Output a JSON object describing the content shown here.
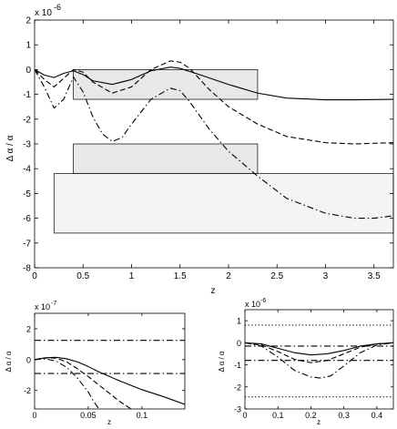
{
  "chart_data": [
    {
      "type": "line",
      "panel": "main",
      "exponent_label": "x 10",
      "exponent_power": "-6",
      "xlabel": "z",
      "ylabel": "Δ α / α",
      "xlim": [
        0,
        3.7
      ],
      "ylim": [
        -8,
        2
      ],
      "xticks": [
        0,
        0.5,
        1,
        1.5,
        2,
        2.5,
        3,
        3.5
      ],
      "xtick_labels": [
        "0",
        "0.5",
        "1",
        "1.5",
        "2",
        "2.5",
        "3",
        "3.5"
      ],
      "yticks": [
        2,
        1,
        0,
        -1,
        -2,
        -3,
        -4,
        -5,
        -6,
        -7,
        -8
      ],
      "ytick_labels": [
        "2",
        "1",
        "0",
        "-1",
        "-2",
        "-3",
        "-4",
        "-5",
        "-6",
        "-7",
        "-8"
      ],
      "grid": false,
      "regions": [
        {
          "x": [
            0.4,
            2.3
          ],
          "y": [
            -1.2,
            0.0
          ],
          "fill": "#e8e8e8"
        },
        {
          "x": [
            0.4,
            2.3
          ],
          "y": [
            -4.2,
            -3.0
          ],
          "fill": "#e8e8e8"
        },
        {
          "x": [
            0.2,
            3.7
          ],
          "y": [
            -6.6,
            -4.2
          ],
          "fill": "#f4f4f4"
        }
      ],
      "series": [
        {
          "style": "solid",
          "x": [
            0,
            0.1,
            0.2,
            0.3,
            0.4,
            0.5,
            0.6,
            0.8,
            1.0,
            1.2,
            1.4,
            1.5,
            1.7,
            2.0,
            2.3,
            2.6,
            3.0,
            3.3,
            3.7
          ],
          "y": [
            0,
            -0.22,
            -0.32,
            -0.15,
            -0.05,
            -0.2,
            -0.45,
            -0.6,
            -0.4,
            -0.05,
            0.1,
            0.05,
            -0.2,
            -0.6,
            -0.95,
            -1.15,
            -1.22,
            -1.22,
            -1.2
          ]
        },
        {
          "style": "dashed",
          "x": [
            0,
            0.1,
            0.2,
            0.3,
            0.4,
            0.5,
            0.6,
            0.8,
            1.0,
            1.2,
            1.4,
            1.5,
            1.6,
            1.8,
            2.0,
            2.3,
            2.6,
            3.0,
            3.3,
            3.7
          ],
          "y": [
            0,
            -0.4,
            -0.7,
            -0.35,
            0,
            -0.1,
            -0.5,
            -0.95,
            -0.7,
            0.0,
            0.35,
            0.3,
            0.05,
            -0.8,
            -1.5,
            -2.2,
            -2.7,
            -2.95,
            -3.0,
            -2.95
          ]
        },
        {
          "style": "dashdot",
          "x": [
            0,
            0.1,
            0.2,
            0.3,
            0.4,
            0.5,
            0.6,
            0.7,
            0.8,
            0.9,
            1.0,
            1.2,
            1.4,
            1.5,
            1.6,
            1.8,
            2.0,
            2.3,
            2.6,
            3.0,
            3.3,
            3.5,
            3.7
          ],
          "y": [
            0,
            -0.7,
            -1.55,
            -1.2,
            -0.3,
            -0.9,
            -1.9,
            -2.6,
            -2.9,
            -2.75,
            -2.2,
            -1.2,
            -0.75,
            -0.85,
            -1.3,
            -2.4,
            -3.3,
            -4.3,
            -5.2,
            -5.8,
            -6.0,
            -6.0,
            -5.9
          ]
        }
      ]
    },
    {
      "type": "line",
      "panel": "bottom-left",
      "exponent_label": "x 10",
      "exponent_power": "-7",
      "xlabel": "z",
      "ylabel": "Δ α / α",
      "xlim": [
        0,
        0.14
      ],
      "ylim": [
        -3.2,
        3
      ],
      "xticks": [
        0,
        0.05,
        0.1
      ],
      "xtick_labels": [
        "0",
        "0.05",
        "0.1"
      ],
      "yticks": [
        2,
        0,
        -2
      ],
      "ytick_labels": [
        "2",
        "0",
        "-2"
      ],
      "grid": false,
      "series": [
        {
          "style": "solid",
          "x": [
            0,
            0.01,
            0.02,
            0.03,
            0.04,
            0.05,
            0.06,
            0.08,
            0.1,
            0.12,
            0.14
          ],
          "y": [
            0,
            0.12,
            0.15,
            0.05,
            -0.15,
            -0.45,
            -0.8,
            -1.4,
            -1.95,
            -2.4,
            -2.9
          ]
        },
        {
          "style": "dashed",
          "x": [
            0,
            0.01,
            0.02,
            0.03,
            0.04,
            0.05,
            0.06,
            0.07,
            0.08,
            0.09
          ],
          "y": [
            0,
            0.1,
            0.1,
            -0.15,
            -0.6,
            -1.1,
            -1.65,
            -2.2,
            -2.75,
            -3.2
          ]
        },
        {
          "style": "dashdot",
          "x": [
            0,
            0.01,
            0.02,
            0.03,
            0.04,
            0.05,
            0.055,
            0.06
          ],
          "y": [
            0,
            0.05,
            -0.1,
            -0.5,
            -1.2,
            -2.1,
            -2.7,
            -3.2
          ]
        },
        {
          "style": "dashdot",
          "x": [
            0,
            0.14
          ],
          "y": [
            1.25,
            1.25
          ]
        },
        {
          "style": "dashdot",
          "x": [
            0,
            0.14
          ],
          "y": [
            -0.9,
            -0.9
          ]
        }
      ]
    },
    {
      "type": "line",
      "panel": "bottom-right",
      "exponent_label": "x 10",
      "exponent_power": "-6",
      "xlabel": "z",
      "ylabel": "Δ α / α",
      "xlim": [
        0,
        0.45
      ],
      "ylim": [
        -3,
        1.5
      ],
      "xticks": [
        0,
        0.1,
        0.2,
        0.3,
        0.4
      ],
      "xtick_labels": [
        "0",
        "0.1",
        "0.2",
        "0.3",
        "0.4"
      ],
      "yticks": [
        1,
        0,
        -1,
        -2,
        -3
      ],
      "ytick_labels": [
        "1",
        "0",
        "-1",
        "-2",
        "-3"
      ],
      "grid": false,
      "series": [
        {
          "style": "solid",
          "x": [
            0,
            0.05,
            0.1,
            0.15,
            0.2,
            0.25,
            0.3,
            0.35,
            0.4,
            0.45
          ],
          "y": [
            0,
            -0.05,
            -0.25,
            -0.45,
            -0.55,
            -0.5,
            -0.35,
            -0.15,
            -0.05,
            0
          ]
        },
        {
          "style": "dashed",
          "x": [
            0,
            0.05,
            0.1,
            0.15,
            0.2,
            0.25,
            0.3,
            0.35,
            0.4,
            0.45
          ],
          "y": [
            0,
            -0.1,
            -0.4,
            -0.75,
            -0.9,
            -0.8,
            -0.5,
            -0.2,
            -0.05,
            0
          ]
        },
        {
          "style": "dashdot",
          "x": [
            0,
            0.05,
            0.1,
            0.15,
            0.2,
            0.23,
            0.26,
            0.3,
            0.35,
            0.4,
            0.45
          ],
          "y": [
            0,
            -0.15,
            -0.65,
            -1.25,
            -1.55,
            -1.6,
            -1.5,
            -1.05,
            -0.45,
            -0.1,
            0
          ]
        },
        {
          "style": "dotted",
          "x": [
            0,
            0.45
          ],
          "y": [
            0.8,
            0.8
          ]
        },
        {
          "style": "dotted",
          "x": [
            0,
            0.45
          ],
          "y": [
            -2.45,
            -2.45
          ]
        },
        {
          "style": "dashdot",
          "x": [
            0,
            0.45
          ],
          "y": [
            -0.15,
            -0.15
          ]
        },
        {
          "style": "dashdot",
          "x": [
            0,
            0.45
          ],
          "y": [
            -0.8,
            -0.8
          ]
        }
      ]
    }
  ]
}
